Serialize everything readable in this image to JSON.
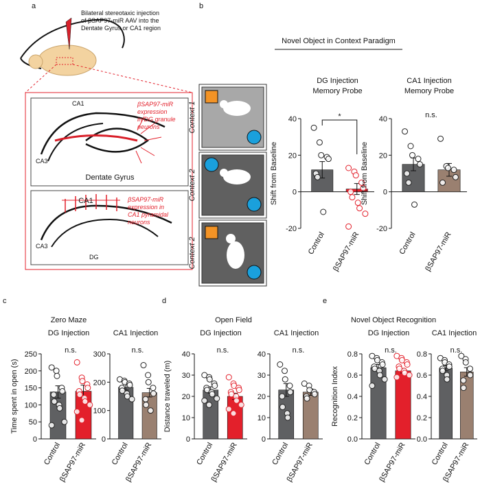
{
  "labels": [
    "a",
    "b",
    "c",
    "d",
    "e"
  ],
  "group_titles": [
    "Novel Object in Context Paradigm",
    "Zero Maze",
    "Open Field",
    "Novel Object Recognition"
  ],
  "schematic": {
    "injection": [
      "Bilateral stereotaxic injection",
      "of βSAP97-miR AAV into the",
      "Dentate Gyrus or CA1 region"
    ],
    "dg_panel": {
      "ca1": "CA1",
      "ca3": "CA3",
      "expression": [
        "βSAP97-miR",
        "expression",
        "in DG granule",
        "neurons"
      ],
      "title": "Dentate Gyrus"
    },
    "ca1_panel": {
      "title": "CA1",
      "expression": [
        "βSAP97-miR",
        "expression in",
        "CA1 pyramidal",
        "neurons"
      ],
      "ca3": "CA3",
      "dg": "DG"
    }
  },
  "contexts": [
    "Context 1",
    "Context 2",
    "Context 2"
  ],
  "chart_data": [
    {
      "type": "bar",
      "title": "DG Injection",
      "subtitle": "Memory Probe",
      "ylabel": "Shift from Baseline",
      "categories": [
        "Control",
        "βSAP97-miR"
      ],
      "values": [
        12,
        1.5
      ],
      "errors": [
        4.5,
        3
      ],
      "colors": [
        "#5f6062",
        "#e3202b"
      ],
      "point_colors": [
        "#222222",
        "#e3202b"
      ],
      "points": [
        [
          35,
          27,
          20,
          19,
          18,
          10,
          8,
          -11
        ],
        [
          13,
          11,
          9,
          5,
          2,
          0,
          -3,
          -6,
          -9,
          -12,
          -19
        ]
      ],
      "annotation": "*",
      "bracket": true,
      "ylim": [
        -20,
        40
      ],
      "yticks": [
        -20,
        0,
        20,
        40
      ]
    },
    {
      "type": "bar",
      "title": "CA1 Injection",
      "subtitle": "Memory Probe",
      "ylabel": "Shift from Baseline",
      "categories": [
        "Control",
        "βSAP97-miR"
      ],
      "values": [
        15,
        12
      ],
      "errors": [
        3.5,
        3.5
      ],
      "colors": [
        "#5f6062",
        "#9a8070"
      ],
      "point_colors": [
        "#222222",
        "#222222"
      ],
      "points": [
        [
          33,
          25,
          20,
          18,
          15,
          10,
          5,
          -7
        ],
        [
          29,
          14,
          13,
          12,
          8,
          5
        ]
      ],
      "annotation": "n.s.",
      "ylim": [
        -20,
        40
      ],
      "yticks": [
        -20,
        0,
        20,
        40
      ]
    },
    {
      "type": "bar",
      "title": "DG Injection",
      "ylabel": "Time spent in open (s)",
      "categories": [
        "Control",
        "βSAP97-miR"
      ],
      "values": [
        138,
        140
      ],
      "errors": [
        18,
        18
      ],
      "colors": [
        "#5f6062",
        "#e3202b"
      ],
      "point_colors": [
        "#222222",
        "#e3202b"
      ],
      "points": [
        [
          210,
          200,
          185,
          150,
          140,
          130,
          110,
          100,
          90,
          50,
          40
        ],
        [
          225,
          180,
          170,
          160,
          150,
          140,
          130,
          120,
          110,
          100,
          80,
          55
        ]
      ],
      "annotation": "n.s.",
      "ylim": [
        0,
        250
      ],
      "yticks": [
        0,
        50,
        100,
        150,
        200,
        250
      ]
    },
    {
      "type": "bar",
      "title": "CA1 Injection",
      "categories": [
        "Control",
        "βSAP97-miR"
      ],
      "values": [
        182,
        163
      ],
      "errors": [
        10,
        15
      ],
      "colors": [
        "#5f6062",
        "#9a8070"
      ],
      "point_colors": [
        "#222222",
        "#222222"
      ],
      "points": [
        [
          210,
          205,
          200,
          195,
          190,
          180,
          170,
          160,
          150,
          140
        ],
        [
          260,
          225,
          200,
          180,
          160,
          140,
          120,
          100
        ]
      ],
      "annotation": "n.s.",
      "ylim": [
        0,
        300
      ],
      "yticks": [
        0,
        100,
        200,
        300
      ]
    },
    {
      "type": "bar",
      "title": "DG Injection",
      "ylabel": "Distance traveled (m)",
      "categories": [
        "Control",
        "βSAP97-miR"
      ],
      "values": [
        23,
        20
      ],
      "errors": [
        1.5,
        1.5
      ],
      "colors": [
        "#5f6062",
        "#e3202b"
      ],
      "point_colors": [
        "#222222",
        "#e3202b"
      ],
      "points": [
        [
          30,
          29,
          28,
          26,
          25,
          24,
          23,
          22,
          21,
          19,
          18,
          16
        ],
        [
          29,
          26,
          25,
          24,
          23,
          22,
          21,
          20,
          18,
          16,
          14,
          12
        ]
      ],
      "annotation": "n.s.",
      "ylim": [
        0,
        40
      ],
      "yticks": [
        0,
        10,
        20,
        30,
        40
      ]
    },
    {
      "type": "bar",
      "title": "CA1 Injection",
      "categories": [
        "Control",
        "βSAP97-miR"
      ],
      "values": [
        23,
        22
      ],
      "errors": [
        3,
        1.5
      ],
      "colors": [
        "#5f6062",
        "#9a8070"
      ],
      "point_colors": [
        "#222222",
        "#222222"
      ],
      "points": [
        [
          35,
          32,
          28,
          25,
          22,
          20,
          15,
          12,
          10
        ],
        [
          26,
          25,
          23,
          22,
          21,
          20,
          19
        ]
      ],
      "annotation": "n.s.",
      "ylim": [
        0,
        40
      ],
      "yticks": [
        0,
        10,
        20,
        30,
        40
      ]
    },
    {
      "type": "bar",
      "title": "DG Injection",
      "ylabel": "Recognition Index",
      "categories": [
        "Control",
        "βSAP97-miR"
      ],
      "values": [
        0.67,
        0.64
      ],
      "errors": [
        0.03,
        0.02
      ],
      "colors": [
        "#5f6062",
        "#e3202b"
      ],
      "point_colors": [
        "#222222",
        "#e3202b"
      ],
      "points": [
        [
          0.78,
          0.76,
          0.74,
          0.72,
          0.7,
          0.68,
          0.66,
          0.64,
          0.6,
          0.56,
          0.5
        ],
        [
          0.78,
          0.76,
          0.74,
          0.72,
          0.7,
          0.68,
          0.66,
          0.64,
          0.62,
          0.6,
          0.58
        ]
      ],
      "annotation": "n.s.",
      "ylim": [
        0,
        0.8
      ],
      "yticks": [
        {
          "value": 0,
          "label": "0.0"
        },
        0.2,
        0.4,
        0.6,
        0.8
      ]
    },
    {
      "type": "bar",
      "title": "CA1 Injection",
      "categories": [
        "Control",
        "βSAP97-miR"
      ],
      "values": [
        0.665,
        0.63
      ],
      "errors": [
        0.025,
        0.04
      ],
      "colors": [
        "#5f6062",
        "#9a8070"
      ],
      "point_colors": [
        "#222222",
        "#222222"
      ],
      "points": [
        [
          0.76,
          0.74,
          0.72,
          0.7,
          0.68,
          0.66,
          0.64,
          0.6,
          0.56
        ],
        [
          0.78,
          0.75,
          0.72,
          0.66,
          0.6,
          0.55,
          0.48
        ]
      ],
      "annotation": "n.s.",
      "ylim": [
        0,
        0.8
      ],
      "yticks": [
        {
          "value": 0,
          "label": "0.0"
        },
        0.2,
        0.4,
        0.6,
        0.8
      ]
    }
  ]
}
